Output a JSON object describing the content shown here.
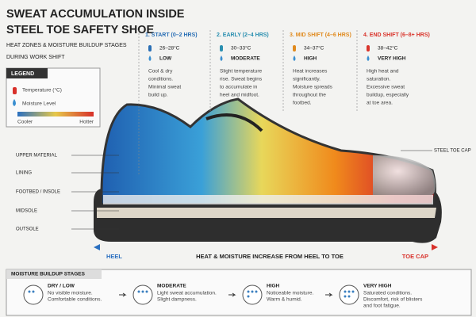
{
  "header": {
    "title": [
      "SWEAT ACCUMULATION INSIDE",
      "STEEL TOE SAFETY SHOE"
    ],
    "subtitle": [
      "HEAT ZONES & MOISTURE BUILDUP STAGES",
      "DURING WORK SHIFT"
    ]
  },
  "legend": {
    "title": "LEGEND",
    "temperature": "Temperature (°C)",
    "moisture": "Moisture Level",
    "cooler": "Cooler",
    "hotter": "Hotter"
  },
  "stages": [
    {
      "title": "1. START (0–2 HRS)",
      "temp": "26–28°C",
      "level": "LOW",
      "description": [
        "Cool & dry",
        "conditions.",
        "Minimal sweat",
        "build up."
      ]
    },
    {
      "title": "2. EARLY (2–4 HRS)",
      "temp": "30–33°C",
      "level": "MODERATE",
      "description": [
        "Slight temperature",
        "rise. Sweat begins",
        "to accumulate in",
        "heel and midfoot."
      ]
    },
    {
      "title": "3. MID SHIFT (4–6 HRS)",
      "temp": "34–37°C",
      "level": "HIGH",
      "description": [
        "Heat increases",
        "significantly.",
        "Moisture spreads",
        "throughout the",
        "footbed."
      ]
    },
    {
      "title": "4. END SHIFT (6–8+ HRS)",
      "temp": "38–42°C",
      "level": "VERY HIGH",
      "description": [
        "High heat and",
        "saturation.",
        "Excessive sweat",
        "buildup, especially",
        "at toe area."
      ]
    }
  ],
  "parts": [
    "UPPER MATERIAL",
    "LINING",
    "FOOTBED / INSOLE",
    "MIDSOLE",
    "OUTSOLE"
  ],
  "toe_label": "STEEL TOE CAP",
  "arrow": {
    "start": "HEEL",
    "text": "HEAT & MOISTURE INCREASE FROM HEEL TO TOE",
    "end": "TOE CAP"
  },
  "moisture_stages": {
    "title": "MOISTURE BUILDUP STAGES",
    "items": [
      {
        "level": "DRY / LOW",
        "description": [
          "No visible moisture.",
          "Comfortable conditions."
        ]
      },
      {
        "level": "MODERATE",
        "description": [
          "Light sweat accumulation.",
          "Slight dampness."
        ]
      },
      {
        "level": "HIGH",
        "description": [
          "Noticeable moisture.",
          "Warm & humid."
        ]
      },
      {
        "level": "VERY HIGH",
        "description": [
          "Saturated conditions.",
          "Discomfort, risk of blisters",
          "and foot fatigue."
        ]
      }
    ]
  }
}
